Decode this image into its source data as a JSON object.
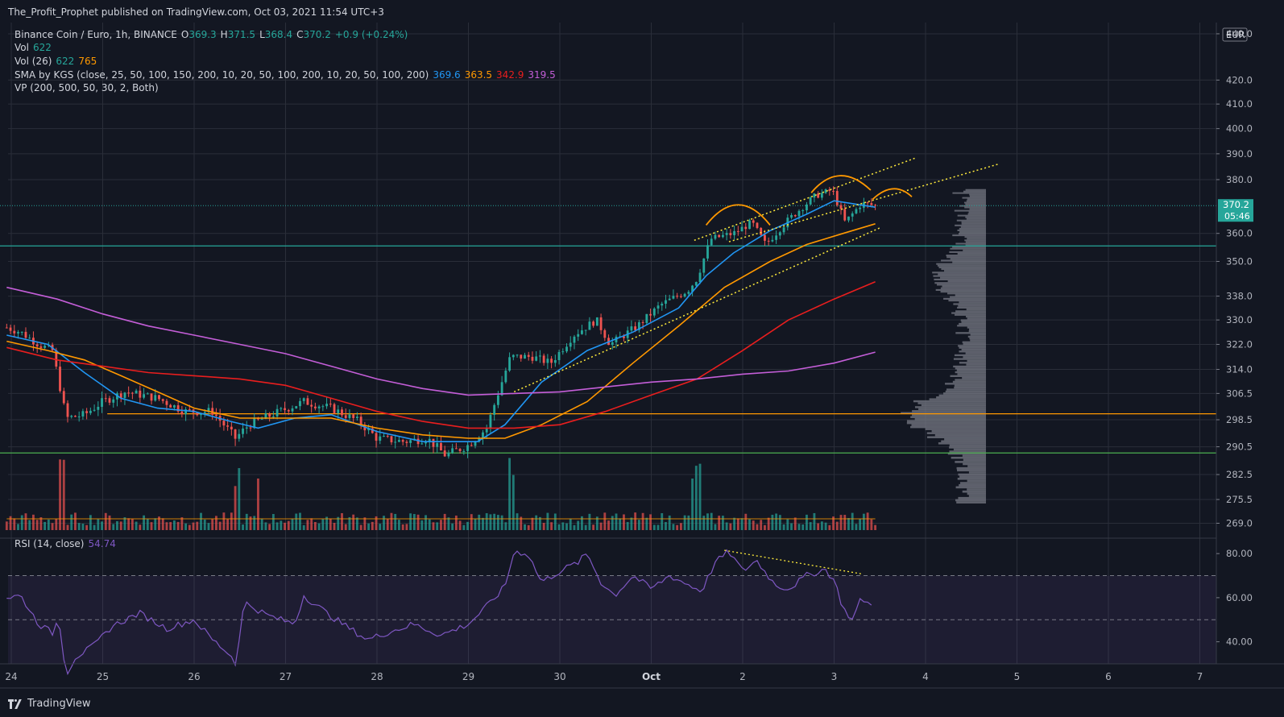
{
  "header": {
    "publisher_line": "The_Profit_Prophet published on TradingView.com, Oct 03, 2021 11:54 UTC+3"
  },
  "legend": {
    "symbol": "Binance Coin / Euro, 1h, BINANCE",
    "o_label": "O",
    "o": "369.3",
    "h_label": "H",
    "h": "371.5",
    "l_label": "L",
    "l": "368.4",
    "c_label": "C",
    "c": "370.2",
    "change": "+0.9 (+0.24%)",
    "vol_label": "Vol",
    "vol": "622",
    "vol26_label": "Vol (26)",
    "vol26_a": "622",
    "vol26_b": "765",
    "sma_label": "SMA by KGS (close, 25, 50, 100, 150, 200, 10, 20, 50, 100, 200, 10, 20, 50, 100, 200)",
    "sma_values": [
      "369.6",
      "363.5",
      "342.9",
      "319.5"
    ],
    "vp_label": "VP (200, 500, 50, 30, 2, Both)",
    "rsi_label": "RSI (14, close)",
    "rsi_value": "54.74"
  },
  "price_axis": {
    "currency": "EUR",
    "ticks": [
      "440.0",
      "420.0",
      "410.0",
      "400.0",
      "390.0",
      "380.0",
      "360.0",
      "350.0",
      "338.0",
      "330.0",
      "322.0",
      "314.0",
      "306.5",
      "298.5",
      "290.5",
      "282.5",
      "275.5",
      "269.0"
    ],
    "last_price": "370.2",
    "countdown": "05:46"
  },
  "rsi_axis": {
    "ticks": [
      "80.00",
      "60.00",
      "40.00"
    ]
  },
  "time_axis": {
    "labels": [
      "24",
      "25",
      "26",
      "27",
      "28",
      "29",
      "30",
      "Oct",
      "2",
      "3",
      "4",
      "5",
      "6",
      "7"
    ]
  },
  "footer": {
    "brand": "TradingView"
  },
  "colors": {
    "bg": "#131722",
    "grid": "#2a2e39",
    "up": "#26a69a",
    "down": "#ef5350",
    "sma_blue": "#2196f3",
    "sma_orange": "#ff9800",
    "sma_red": "#e91e1e",
    "sma_purple": "#c45ed8",
    "rsi": "#7e57c2",
    "trend_yellow": "#ffeb3b",
    "arc_orange": "#ff9800",
    "vp_gray": "#787b86",
    "last_badge": "#26a69a",
    "level_green": "#4caf50",
    "level_orange": "#ff9800",
    "level_teal": "#26a69a"
  },
  "chart_data": {
    "type": "candlestick",
    "symbol": "Binance Coin / Euro",
    "timeframe": "1h",
    "ylim": [
      265,
      445
    ],
    "rsi_ylim": [
      30,
      87
    ],
    "rsi_bands": [
      70,
      50,
      30
    ],
    "x_day_labels": [
      "24",
      "25",
      "26",
      "27",
      "28",
      "29",
      "30",
      "Oct",
      "2",
      "3",
      "4",
      "5",
      "6",
      "7"
    ],
    "hlines": [
      {
        "value": 355.5,
        "color": "#26a69a"
      },
      {
        "value": 300.3,
        "color": "#ff9800"
      },
      {
        "value": 288.7,
        "color": "#4caf50"
      },
      {
        "value": 370.2,
        "color": "#26a69a",
        "dotted": true
      }
    ],
    "price_anchors": [
      {
        "day": -0.05,
        "price": 327.5
      },
      {
        "day": 0.1,
        "price": 326
      },
      {
        "day": 0.3,
        "price": 322
      },
      {
        "day": 0.45,
        "price": 320
      },
      {
        "day": 0.6,
        "price": 299
      },
      {
        "day": 0.8,
        "price": 300
      },
      {
        "day": 1.0,
        "price": 304
      },
      {
        "day": 1.25,
        "price": 307
      },
      {
        "day": 1.6,
        "price": 305
      },
      {
        "day": 1.9,
        "price": 301
      },
      {
        "day": 2.2,
        "price": 301
      },
      {
        "day": 2.45,
        "price": 293
      },
      {
        "day": 2.6,
        "price": 297
      },
      {
        "day": 2.85,
        "price": 300
      },
      {
        "day": 3.2,
        "price": 304
      },
      {
        "day": 3.5,
        "price": 302
      },
      {
        "day": 3.8,
        "price": 298
      },
      {
        "day": 4.0,
        "price": 293
      },
      {
        "day": 4.3,
        "price": 292
      },
      {
        "day": 4.55,
        "price": 293
      },
      {
        "day": 4.75,
        "price": 288
      },
      {
        "day": 5.0,
        "price": 291
      },
      {
        "day": 5.2,
        "price": 296
      },
      {
        "day": 5.46,
        "price": 318
      },
      {
        "day": 5.7,
        "price": 318
      },
      {
        "day": 5.9,
        "price": 316
      },
      {
        "day": 6.15,
        "price": 325
      },
      {
        "day": 6.4,
        "price": 330
      },
      {
        "day": 6.55,
        "price": 322
      },
      {
        "day": 6.85,
        "price": 328
      },
      {
        "day": 7.1,
        "price": 335
      },
      {
        "day": 7.4,
        "price": 340
      },
      {
        "day": 7.5,
        "price": 344
      },
      {
        "day": 7.65,
        "price": 358
      },
      {
        "day": 7.9,
        "price": 360
      },
      {
        "day": 8.1,
        "price": 364
      },
      {
        "day": 8.25,
        "price": 356
      },
      {
        "day": 8.5,
        "price": 365
      },
      {
        "day": 8.8,
        "price": 374
      },
      {
        "day": 8.98,
        "price": 376
      },
      {
        "day": 9.12,
        "price": 364
      },
      {
        "day": 9.3,
        "price": 371
      },
      {
        "day": 9.45,
        "price": 370.2
      }
    ],
    "sma_series": [
      {
        "name": "SMA 25",
        "color": "#2196f3",
        "points": [
          [
            -0.05,
            325
          ],
          [
            0.4,
            322
          ],
          [
            0.8,
            313
          ],
          [
            1.2,
            305
          ],
          [
            1.6,
            302
          ],
          [
            2.0,
            301
          ],
          [
            2.4,
            298
          ],
          [
            2.7,
            296
          ],
          [
            3.1,
            299
          ],
          [
            3.5,
            300
          ],
          [
            4.0,
            295
          ],
          [
            4.5,
            292
          ],
          [
            5.1,
            292
          ],
          [
            5.4,
            297
          ],
          [
            5.8,
            310
          ],
          [
            6.3,
            320
          ],
          [
            6.8,
            326
          ],
          [
            7.3,
            334
          ],
          [
            7.6,
            345
          ],
          [
            7.9,
            353
          ],
          [
            8.3,
            361
          ],
          [
            8.7,
            367
          ],
          [
            9.0,
            372
          ],
          [
            9.45,
            369.6
          ]
        ]
      },
      {
        "name": "SMA 50",
        "color": "#ff9800",
        "points": [
          [
            -0.05,
            323
          ],
          [
            0.4,
            320
          ],
          [
            0.8,
            317
          ],
          [
            1.2,
            312
          ],
          [
            1.6,
            307
          ],
          [
            2.0,
            302
          ],
          [
            2.5,
            299
          ],
          [
            3.0,
            299
          ],
          [
            3.5,
            299
          ],
          [
            4.0,
            296
          ],
          [
            4.5,
            294
          ],
          [
            5.0,
            293
          ],
          [
            5.4,
            293
          ],
          [
            5.8,
            297
          ],
          [
            6.3,
            304
          ],
          [
            6.8,
            316
          ],
          [
            7.3,
            328
          ],
          [
            7.8,
            341
          ],
          [
            8.3,
            350
          ],
          [
            8.7,
            356
          ],
          [
            9.1,
            360
          ],
          [
            9.45,
            363.5
          ]
        ]
      },
      {
        "name": "SMA 100",
        "color": "#e91e1e",
        "points": [
          [
            -0.05,
            321
          ],
          [
            0.5,
            317
          ],
          [
            1.0,
            315
          ],
          [
            1.5,
            313
          ],
          [
            2.0,
            312
          ],
          [
            2.5,
            311
          ],
          [
            3.0,
            309
          ],
          [
            3.5,
            305
          ],
          [
            4.0,
            301
          ],
          [
            4.5,
            298
          ],
          [
            5.0,
            296
          ],
          [
            5.5,
            296
          ],
          [
            6.0,
            297
          ],
          [
            6.5,
            301
          ],
          [
            7.0,
            306
          ],
          [
            7.5,
            311
          ],
          [
            8.0,
            320
          ],
          [
            8.5,
            330
          ],
          [
            9.0,
            337
          ],
          [
            9.45,
            342.9
          ]
        ]
      },
      {
        "name": "SMA 200",
        "color": "#c45ed8",
        "points": [
          [
            -0.05,
            341
          ],
          [
            0.5,
            337
          ],
          [
            1.0,
            332
          ],
          [
            1.5,
            328
          ],
          [
            2.0,
            325
          ],
          [
            2.5,
            322
          ],
          [
            3.0,
            319
          ],
          [
            3.5,
            315
          ],
          [
            4.0,
            311
          ],
          [
            4.5,
            308
          ],
          [
            5.0,
            306
          ],
          [
            5.5,
            306.5
          ],
          [
            6.0,
            307
          ],
          [
            6.5,
            308.5
          ],
          [
            7.0,
            310
          ],
          [
            7.5,
            311
          ],
          [
            8.0,
            312.5
          ],
          [
            8.5,
            313.5
          ],
          [
            9.0,
            316
          ],
          [
            9.45,
            319.5
          ]
        ]
      }
    ],
    "trendlines": [
      {
        "from": [
          7.47,
          357.5
        ],
        "to": [
          9.9,
          388.5
        ]
      },
      {
        "from": [
          7.85,
          357
        ],
        "to": [
          10.8,
          386
        ]
      },
      {
        "from": [
          5.5,
          307
        ],
        "to": [
          9.5,
          362
        ]
      }
    ],
    "arcs": [
      {
        "from": [
          7.6,
          363
        ],
        "peak": [
          7.95,
          370.5
        ],
        "to": [
          8.3,
          363
        ]
      },
      {
        "from": [
          8.75,
          375
        ],
        "peak": [
          9.05,
          381.5
        ],
        "to": [
          9.4,
          376
        ]
      },
      {
        "from": [
          9.42,
          372.5
        ],
        "peak": [
          9.65,
          376.5
        ],
        "to": [
          9.85,
          373.5
        ]
      }
    ],
    "rsi_anchors": [
      {
        "day": -0.05,
        "rsi": 60
      },
      {
        "day": 0.1,
        "rsi": 61
      },
      {
        "day": 0.3,
        "rsi": 48
      },
      {
        "day": 0.45,
        "rsi": 44
      },
      {
        "day": 0.52,
        "rsi": 51
      },
      {
        "day": 0.6,
        "rsi": 25
      },
      {
        "day": 0.7,
        "rsi": 33
      },
      {
        "day": 0.9,
        "rsi": 38
      },
      {
        "day": 1.1,
        "rsi": 47
      },
      {
        "day": 1.4,
        "rsi": 53
      },
      {
        "day": 1.7,
        "rsi": 46
      },
      {
        "day": 2.0,
        "rsi": 50
      },
      {
        "day": 2.2,
        "rsi": 41
      },
      {
        "day": 2.4,
        "rsi": 34
      },
      {
        "day": 2.45,
        "rsi": 30
      },
      {
        "day": 2.55,
        "rsi": 58
      },
      {
        "day": 2.8,
        "rsi": 52
      },
      {
        "day": 3.1,
        "rsi": 48
      },
      {
        "day": 3.2,
        "rsi": 61
      },
      {
        "day": 3.45,
        "rsi": 53
      },
      {
        "day": 3.7,
        "rsi": 46
      },
      {
        "day": 3.9,
        "rsi": 41
      },
      {
        "day": 4.1,
        "rsi": 44
      },
      {
        "day": 4.4,
        "rsi": 48
      },
      {
        "day": 4.7,
        "rsi": 43
      },
      {
        "day": 5.0,
        "rsi": 48
      },
      {
        "day": 5.2,
        "rsi": 56
      },
      {
        "day": 5.4,
        "rsi": 65
      },
      {
        "day": 5.5,
        "rsi": 81
      },
      {
        "day": 5.65,
        "rsi": 80
      },
      {
        "day": 5.8,
        "rsi": 67
      },
      {
        "day": 6.0,
        "rsi": 72
      },
      {
        "day": 6.2,
        "rsi": 76
      },
      {
        "day": 6.3,
        "rsi": 80
      },
      {
        "day": 6.45,
        "rsi": 67
      },
      {
        "day": 6.6,
        "rsi": 61
      },
      {
        "day": 6.8,
        "rsi": 70
      },
      {
        "day": 7.0,
        "rsi": 64
      },
      {
        "day": 7.2,
        "rsi": 70
      },
      {
        "day": 7.4,
        "rsi": 66
      },
      {
        "day": 7.55,
        "rsi": 63
      },
      {
        "day": 7.7,
        "rsi": 76
      },
      {
        "day": 7.85,
        "rsi": 81
      },
      {
        "day": 8.0,
        "rsi": 72
      },
      {
        "day": 8.15,
        "rsi": 77
      },
      {
        "day": 8.35,
        "rsi": 66
      },
      {
        "day": 8.5,
        "rsi": 64
      },
      {
        "day": 8.7,
        "rsi": 70
      },
      {
        "day": 8.9,
        "rsi": 73
      },
      {
        "day": 9.0,
        "rsi": 68
      },
      {
        "day": 9.1,
        "rsi": 55
      },
      {
        "day": 9.2,
        "rsi": 50
      },
      {
        "day": 9.3,
        "rsi": 60
      },
      {
        "day": 9.45,
        "rsi": 54.74
      }
    ],
    "rsi_divergence": {
      "from": [
        7.8,
        81.5
      ],
      "to": [
        9.3,
        70.8
      ]
    },
    "volume_profile": {
      "price_min": 275,
      "price_max": 377,
      "poc": 300
    }
  }
}
